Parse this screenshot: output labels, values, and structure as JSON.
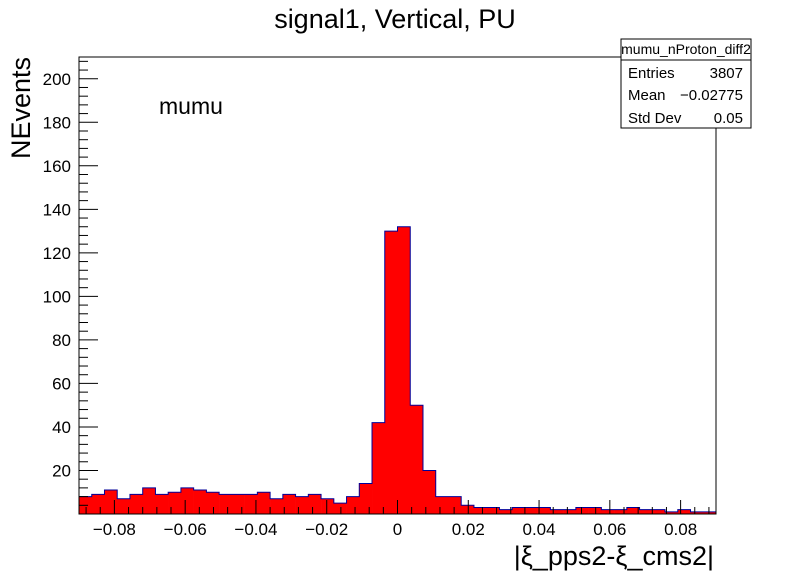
{
  "title": "signal1, Vertical, PU",
  "annotation": "mumu",
  "stats": {
    "name": "mumu_nProton_diff2",
    "rows": [
      {
        "label": "Entries",
        "value": "3807"
      },
      {
        "label": "Mean",
        "value": "−0.02775"
      },
      {
        "label": "Std Dev",
        "value": "0.05"
      }
    ]
  },
  "colors": {
    "fill": "#ff0000",
    "line": "#000099",
    "frame": "#000000"
  },
  "chart_data": {
    "type": "bar",
    "style": "histogram",
    "title": "signal1, Vertical, PU",
    "xlabel": "|ξ_pps2-ξ_cms2|",
    "ylabel": "NEvents",
    "xlim": [
      -0.09,
      0.09
    ],
    "ylim": [
      0,
      210
    ],
    "bin_width": 0.0036,
    "bin_low_edges": [
      -0.09,
      -0.0864,
      -0.0828,
      -0.0792,
      -0.0756,
      -0.072,
      -0.0684,
      -0.0648,
      -0.0612,
      -0.0576,
      -0.054,
      -0.0504,
      -0.0468,
      -0.0432,
      -0.0396,
      -0.036,
      -0.0324,
      -0.0288,
      -0.0252,
      -0.0216,
      -0.018,
      -0.0144,
      -0.0108,
      -0.0072,
      -0.0036,
      0.0,
      0.0036,
      0.0072,
      0.0108,
      0.0144,
      0.018,
      0.0216,
      0.0252,
      0.0288,
      0.0324,
      0.036,
      0.0396,
      0.0432,
      0.0468,
      0.0504,
      0.054,
      0.0576,
      0.0612,
      0.0648,
      0.0684,
      0.072,
      0.0756,
      0.0792,
      0.0828,
      0.0864
    ],
    "values": [
      8,
      9,
      11,
      7,
      9,
      12,
      9,
      10,
      12,
      11,
      10,
      9,
      9,
      9,
      10,
      7,
      9,
      8,
      9,
      7,
      5,
      8,
      14,
      42,
      130,
      132,
      50,
      20,
      8,
      8,
      4,
      3,
      3,
      2,
      3,
      3,
      3,
      2,
      2,
      3,
      3,
      2,
      2,
      3,
      2,
      2,
      1,
      2,
      1,
      1
    ],
    "x_ticks": [
      -0.08,
      -0.06,
      -0.04,
      -0.02,
      0,
      0.02,
      0.04,
      0.06,
      0.08
    ],
    "x_tick_labels": [
      "−0.08",
      "−0.06",
      "−0.04",
      "−0.02",
      "0",
      "0.02",
      "0.04",
      "0.06",
      "0.08"
    ],
    "y_ticks": [
      20,
      40,
      60,
      80,
      100,
      120,
      140,
      160,
      180,
      200
    ],
    "y_tick_labels": [
      "20",
      "40",
      "60",
      "80",
      "100",
      "120",
      "140",
      "160",
      "180",
      "200"
    ],
    "grid": false,
    "legend": "none"
  }
}
